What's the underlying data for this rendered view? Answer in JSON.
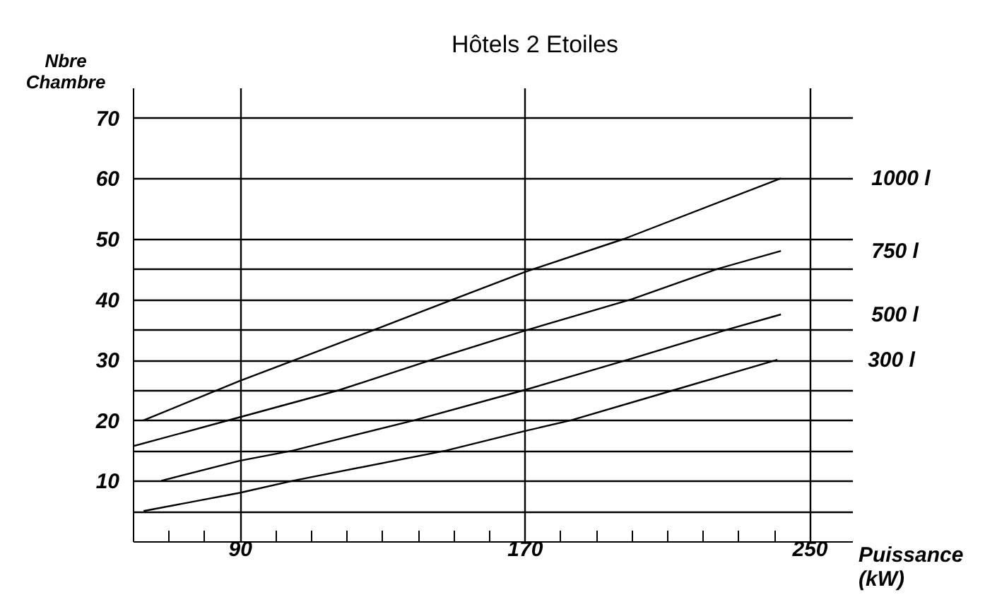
{
  "chart_data": {
    "type": "line",
    "title": "Hôtels 2 Etoiles",
    "xlabel": "Puissance (kW)",
    "ylabel": "Nbre Chambre",
    "xlim": [
      60,
      262
    ],
    "ylim": [
      0,
      75
    ],
    "xticks": [
      {
        "value": 70,
        "label": null
      },
      {
        "value": 80,
        "label": null
      },
      90,
      {
        "value": 100,
        "label": null
      },
      {
        "value": 110,
        "label": null
      },
      {
        "value": 120,
        "label": null
      },
      {
        "value": 130,
        "label": null
      },
      {
        "value": 140,
        "label": null
      },
      {
        "value": 150,
        "label": null
      },
      {
        "value": 160,
        "label": null
      },
      170,
      {
        "value": 180,
        "label": null
      },
      {
        "value": 190,
        "label": null
      },
      {
        "value": 200,
        "label": null
      },
      {
        "value": 210,
        "label": null
      },
      {
        "value": 220,
        "label": null
      },
      {
        "value": 230,
        "label": null
      },
      {
        "value": 240,
        "label": null
      },
      250
    ],
    "yticks": [
      {
        "value": 5,
        "label": null
      },
      10,
      {
        "value": 15,
        "label": null
      },
      20,
      {
        "value": 25,
        "label": null
      },
      30,
      {
        "value": 35,
        "label": null
      },
      40,
      {
        "value": 45,
        "label": null
      },
      50,
      60,
      70
    ],
    "grid": true,
    "legend": false,
    "marker": "none",
    "line_style": "solid",
    "series": [
      {
        "name": "1000 l",
        "color": "#000000",
        "x": [
          63,
          90,
          128,
          150,
          170,
          198,
          242
        ],
        "values": [
          20,
          26.5,
          35,
          40,
          44.5,
          50,
          60
        ]
      },
      {
        "name": "750 l",
        "color": "#000000",
        "x": [
          60,
          90,
          118,
          144,
          170,
          200,
          224,
          242
        ],
        "values": [
          15.7,
          20.5,
          25,
          30,
          34.8,
          40,
          45,
          48
        ]
      },
      {
        "name": "500 l",
        "color": "#000000",
        "x": [
          68,
          90,
          105,
          139,
          170,
          199,
          227,
          242
        ],
        "values": [
          10,
          13.3,
          15,
          20,
          25,
          30,
          35,
          37.5
        ]
      },
      {
        "name": "300 l",
        "color": "#000000",
        "x": [
          63,
          90,
          105,
          148,
          170,
          183,
          212,
          241
        ],
        "values": [
          5,
          8,
          10,
          15,
          18.2,
          20,
          25,
          30
        ]
      }
    ]
  }
}
